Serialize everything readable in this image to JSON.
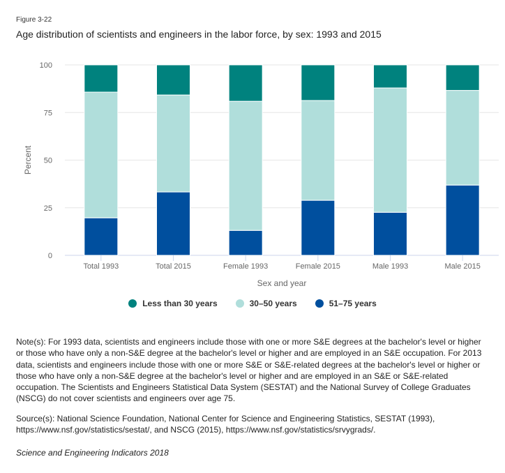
{
  "figure_label": "Figure 3-22",
  "chart_data": {
    "type": "bar",
    "stacked": true,
    "title": "Age distribution of scientists and engineers in the labor force, by sex: 1993 and 2015",
    "xlabel": "Sex and year",
    "ylabel": "Percent",
    "ylim": [
      0,
      100
    ],
    "yticks": [
      0,
      25,
      50,
      75,
      100
    ],
    "grid": true,
    "legend_position": "bottom",
    "categories": [
      "Total 1993",
      "Total 2015",
      "Female 1993",
      "Female 2015",
      "Male 1993",
      "Male 2015"
    ],
    "series": [
      {
        "name": "Less than 30 years",
        "color": "#00827e",
        "values": [
          14.3,
          15.8,
          19.1,
          18.7,
          12.1,
          13.4
        ]
      },
      {
        "name": "30–50 years",
        "color": "#b0dedb",
        "values": [
          66.0,
          50.9,
          67.8,
          52.4,
          65.3,
          49.7
        ]
      },
      {
        "name": "51–75 years",
        "color": "#004f9e",
        "values": [
          19.7,
          33.3,
          13.1,
          28.9,
          22.6,
          36.9
        ]
      }
    ]
  },
  "notes": "Note(s): For 1993 data, scientists and engineers include those with one or more S&E degrees at the bachelor's level or higher or those who have only a non-S&E degree at the bachelor's level or higher and are employed in an S&E occupation. For 2013 data, scientists and engineers include those with one or more S&E or S&E-related degrees at the bachelor's level or higher or those who have only a non-S&E degree at the bachelor's level or higher and are employed in an S&E or S&E-related occupation. The Scientists and Engineers Statistical Data System (SESTAT) and the National Survey of College Graduates (NSCG) do not cover scientists and engineers over age 75.",
  "source": "Source(s): National Science Foundation, National Center for Science and Engineering Statistics, SESTAT (1993), https://www.nsf.gov/statistics/sestat/, and NSCG (2015), https://www.nsf.gov/statistics/srvygrads/.",
  "citation": "Science and Engineering Indicators 2018"
}
